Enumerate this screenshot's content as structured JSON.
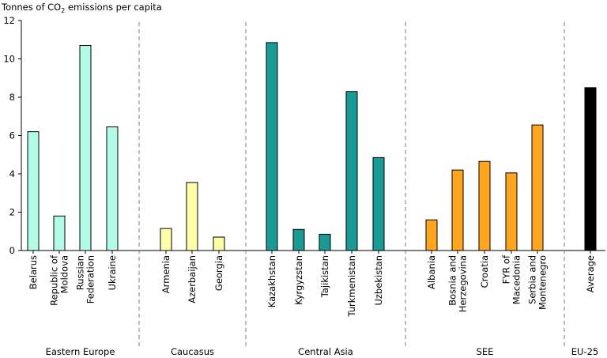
{
  "chart_data": {
    "type": "bar",
    "ylabel": "Tonnes of CO2 emissions per capita",
    "ylabel_main": "Tonnes of CO",
    "ylabel_sub": "2",
    "ylabel_rest": " emissions per capita",
    "ylim": [
      0,
      12
    ],
    "yticks": [
      0,
      2,
      4,
      6,
      8,
      10,
      12
    ],
    "grid": false,
    "groups": [
      {
        "name": "Eastern Europe",
        "color": "#b3fbe9",
        "categories": [
          [
            "Belarus"
          ],
          [
            "Republic of",
            "Moldova"
          ],
          [
            "Russian",
            "Federation"
          ],
          [
            "Ukraine"
          ]
        ],
        "values": [
          6.2,
          1.8,
          10.7,
          6.45
        ]
      },
      {
        "name": "Caucasus",
        "color": "#ffffaa",
        "categories": [
          [
            "Armenia"
          ],
          [
            "Azerbaijan"
          ],
          [
            "Georgia"
          ]
        ],
        "values": [
          1.15,
          3.55,
          0.7
        ]
      },
      {
        "name": "Central Asia",
        "color": "#1a9a96",
        "categories": [
          [
            "Kazakhstan"
          ],
          [
            "Kyrgyzstan"
          ],
          [
            "Tajikistan"
          ],
          [
            "Turkmenistan"
          ],
          [
            "Uzbekistan"
          ]
        ],
        "values": [
          10.85,
          1.1,
          0.85,
          8.3,
          4.85
        ]
      },
      {
        "name": "SEE",
        "color": "#ffa520",
        "categories": [
          [
            "Albania"
          ],
          [
            "Bosnia and",
            "Herzegovina"
          ],
          [
            "Croatia"
          ],
          [
            "FYR of",
            "Macedonia"
          ],
          [
            "Serbia and",
            "Montenegro"
          ]
        ],
        "values": [
          1.6,
          4.2,
          4.65,
          4.05,
          6.55
        ]
      },
      {
        "name": "EU-25",
        "color": "#000000",
        "categories": [
          [
            "Average"
          ]
        ],
        "values": [
          8.5
        ]
      }
    ]
  }
}
